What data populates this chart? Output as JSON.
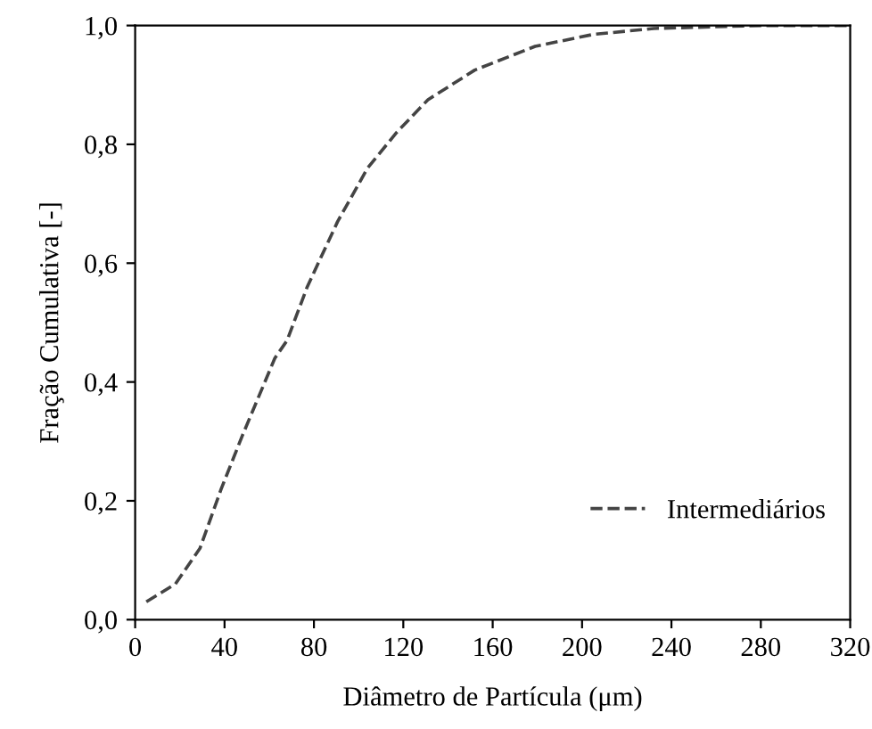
{
  "chart_data": {
    "type": "line",
    "xlabel": "Diâmetro de Partícula (μm)",
    "ylabel": "Fração Cumulativa [-]",
    "xlim": [
      0,
      320
    ],
    "ylim": [
      0,
      1.0
    ],
    "xticks": [
      0,
      40,
      80,
      120,
      160,
      200,
      240,
      280,
      320
    ],
    "yticks": [
      {
        "value": 0,
        "label": "0,0"
      },
      {
        "value": 0.2,
        "label": "0,2"
      },
      {
        "value": 0.4,
        "label": "0,4"
      },
      {
        "value": 0.6,
        "label": "0,6"
      },
      {
        "value": 0.8,
        "label": "0,8"
      },
      {
        "value": 1.0,
        "label": "1,0"
      }
    ],
    "series": [
      {
        "name": "Intermediários",
        "color": "#444444",
        "x": [
          5,
          18,
          29,
          38.5,
          48,
          62.5,
          68,
          77,
          90.6,
          104,
          117,
          131,
          152,
          179,
          205,
          232,
          280,
          320
        ],
        "values": [
          0.03,
          0.06,
          0.12,
          0.22,
          0.31,
          0.44,
          0.47,
          0.56,
          0.67,
          0.76,
          0.82,
          0.875,
          0.925,
          0.965,
          0.985,
          0.995,
          1.0,
          1.0
        ]
      }
    ],
    "line_style": "dashed",
    "marker": "none",
    "legend": "bottom right",
    "grid": false
  }
}
